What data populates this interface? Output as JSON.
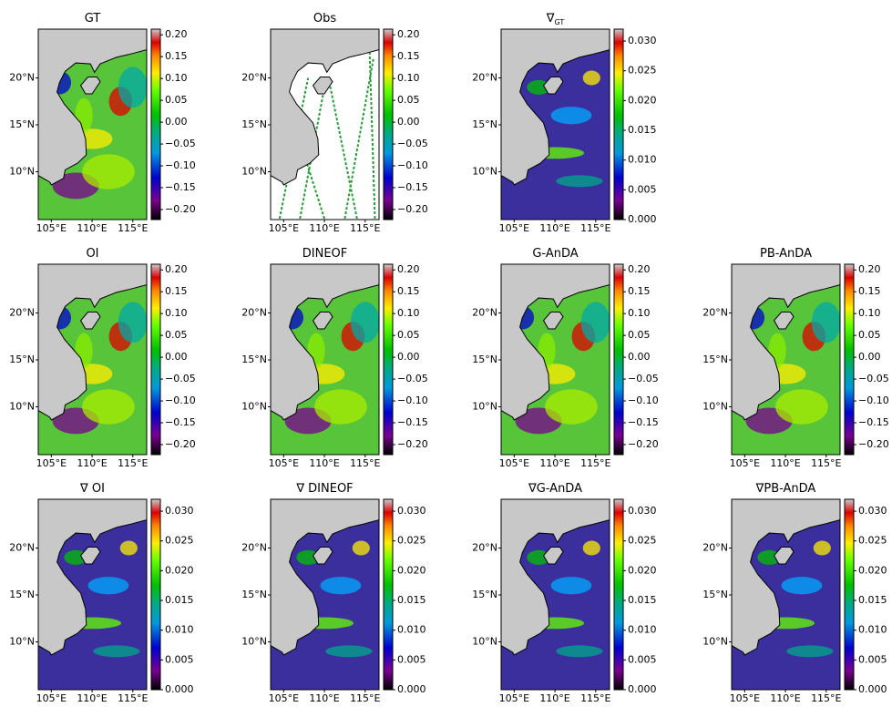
{
  "chart_data": [
    {
      "type": "map",
      "title": "GT",
      "color": "#58c43a",
      "xlim": [
        103.4,
        116.7
      ],
      "ylim": [
        4.9,
        25.2
      ],
      "xticks": [
        {
          "value": 105,
          "label": "105°E"
        },
        {
          "value": 110,
          "label": "110°E"
        },
        {
          "value": 115,
          "label": "115°E"
        }
      ],
      "yticks": [
        {
          "value": 10,
          "label": "10°N"
        },
        {
          "value": 15,
          "label": "15°N"
        },
        {
          "value": 20,
          "label": "20°N"
        }
      ],
      "clim": [
        -0.223,
        0.213
      ],
      "cticks": [
        {
          "value": 0.2,
          "label": "0.20"
        },
        {
          "value": 0.15,
          "label": "0.15"
        },
        {
          "value": 0.1,
          "label": "0.10"
        },
        {
          "value": 0.05,
          "label": "0.05"
        },
        {
          "value": 0,
          "label": "0.00"
        },
        {
          "value": -0.05,
          "label": "−0.05"
        },
        {
          "value": -0.1,
          "label": "−0.10"
        },
        {
          "value": -0.15,
          "label": "−0.15"
        },
        {
          "value": -0.2,
          "label": "−0.20"
        }
      ]
    },
    {
      "type": "map",
      "title": "Obs",
      "color": "#ffffff",
      "xlim": [
        103.4,
        116.7
      ],
      "ylim": [
        4.9,
        25.2
      ],
      "xticks": [
        {
          "value": 105,
          "label": "105°E"
        },
        {
          "value": 110,
          "label": "110°E"
        },
        {
          "value": 115,
          "label": "115°E"
        }
      ],
      "yticks": [
        {
          "value": 10,
          "label": "10°N"
        },
        {
          "value": 15,
          "label": "15°N"
        },
        {
          "value": 20,
          "label": "20°N"
        }
      ],
      "clim": [
        -0.223,
        0.213
      ],
      "cticks": [
        {
          "value": 0.2,
          "label": "0.20"
        },
        {
          "value": 0.15,
          "label": "0.15"
        },
        {
          "value": 0.1,
          "label": "0.10"
        },
        {
          "value": 0.05,
          "label": "0.05"
        },
        {
          "value": 0,
          "label": "0.00"
        },
        {
          "value": -0.05,
          "label": "−0.05"
        },
        {
          "value": -0.1,
          "label": "−0.10"
        },
        {
          "value": -0.15,
          "label": "−0.15"
        },
        {
          "value": -0.2,
          "label": "−0.20"
        }
      ]
    },
    {
      "type": "map",
      "title": "∇",
      "subscript": "GT",
      "color": "#3b2f9e",
      "xlim": [
        103.4,
        116.7
      ],
      "ylim": [
        4.9,
        25.2
      ],
      "xticks": [
        {
          "value": 105,
          "label": "105°E"
        },
        {
          "value": 110,
          "label": "110°E"
        },
        {
          "value": 115,
          "label": "115°E"
        }
      ],
      "yticks": [
        {
          "value": 10,
          "label": "10°N"
        },
        {
          "value": 15,
          "label": "15°N"
        },
        {
          "value": 20,
          "label": "20°N"
        }
      ],
      "clim": [
        0,
        0.032
      ],
      "cticks": [
        {
          "value": 0.03,
          "label": "0.030"
        },
        {
          "value": 0.025,
          "label": "0.025"
        },
        {
          "value": 0.02,
          "label": "0.020"
        },
        {
          "value": 0.015,
          "label": "0.015"
        },
        {
          "value": 0.01,
          "label": "0.010"
        },
        {
          "value": 0.005,
          "label": "0.005"
        },
        {
          "value": 0,
          "label": "0.000"
        }
      ]
    },
    {
      "type": "map",
      "title": "OI",
      "color": "#58c43a",
      "xlim": [
        103.4,
        116.7
      ],
      "ylim": [
        4.9,
        25.2
      ],
      "xticks": [
        {
          "value": 105,
          "label": "105°E"
        },
        {
          "value": 110,
          "label": "110°E"
        },
        {
          "value": 115,
          "label": "115°E"
        }
      ],
      "yticks": [
        {
          "value": 10,
          "label": "10°N"
        },
        {
          "value": 15,
          "label": "15°N"
        },
        {
          "value": 20,
          "label": "20°N"
        }
      ],
      "clim": [
        -0.223,
        0.213
      ],
      "cticks": [
        {
          "value": 0.2,
          "label": "0.20"
        },
        {
          "value": 0.15,
          "label": "0.15"
        },
        {
          "value": 0.1,
          "label": "0.10"
        },
        {
          "value": 0.05,
          "label": "0.05"
        },
        {
          "value": 0,
          "label": "0.00"
        },
        {
          "value": -0.05,
          "label": "−0.05"
        },
        {
          "value": -0.1,
          "label": "−0.10"
        },
        {
          "value": -0.15,
          "label": "−0.15"
        },
        {
          "value": -0.2,
          "label": "−0.20"
        }
      ]
    },
    {
      "type": "map",
      "title": "DINEOF",
      "color": "#58c43a",
      "xlim": [
        103.4,
        116.7
      ],
      "ylim": [
        4.9,
        25.2
      ],
      "xticks": [
        {
          "value": 105,
          "label": "105°E"
        },
        {
          "value": 110,
          "label": "110°E"
        },
        {
          "value": 115,
          "label": "115°E"
        }
      ],
      "yticks": [
        {
          "value": 10,
          "label": "10°N"
        },
        {
          "value": 15,
          "label": "15°N"
        },
        {
          "value": 20,
          "label": "20°N"
        }
      ],
      "clim": [
        -0.223,
        0.213
      ],
      "cticks": [
        {
          "value": 0.2,
          "label": "0.20"
        },
        {
          "value": 0.15,
          "label": "0.15"
        },
        {
          "value": 0.1,
          "label": "0.10"
        },
        {
          "value": 0.05,
          "label": "0.05"
        },
        {
          "value": 0,
          "label": "0.00"
        },
        {
          "value": -0.05,
          "label": "−0.05"
        },
        {
          "value": -0.1,
          "label": "−0.10"
        },
        {
          "value": -0.15,
          "label": "−0.15"
        },
        {
          "value": -0.2,
          "label": "−0.20"
        }
      ]
    },
    {
      "type": "map",
      "title": "G-AnDA",
      "color": "#58c43a",
      "xlim": [
        103.4,
        116.7
      ],
      "ylim": [
        4.9,
        25.2
      ],
      "xticks": [
        {
          "value": 105,
          "label": "105°E"
        },
        {
          "value": 110,
          "label": "110°E"
        },
        {
          "value": 115,
          "label": "115°E"
        }
      ],
      "yticks": [
        {
          "value": 10,
          "label": "10°N"
        },
        {
          "value": 15,
          "label": "15°N"
        },
        {
          "value": 20,
          "label": "20°N"
        }
      ],
      "clim": [
        -0.223,
        0.213
      ],
      "cticks": [
        {
          "value": 0.2,
          "label": "0.20"
        },
        {
          "value": 0.15,
          "label": "0.15"
        },
        {
          "value": 0.1,
          "label": "0.10"
        },
        {
          "value": 0.05,
          "label": "0.05"
        },
        {
          "value": 0,
          "label": "0.00"
        },
        {
          "value": -0.05,
          "label": "−0.05"
        },
        {
          "value": -0.1,
          "label": "−0.10"
        },
        {
          "value": -0.15,
          "label": "−0.15"
        },
        {
          "value": -0.2,
          "label": "−0.20"
        }
      ]
    },
    {
      "type": "map",
      "title": "PB-AnDA",
      "color": "#58c43a",
      "xlim": [
        103.4,
        116.7
      ],
      "ylim": [
        4.9,
        25.2
      ],
      "xticks": [
        {
          "value": 105,
          "label": "105°E"
        },
        {
          "value": 110,
          "label": "110°E"
        },
        {
          "value": 115,
          "label": "115°E"
        }
      ],
      "yticks": [
        {
          "value": 10,
          "label": "10°N"
        },
        {
          "value": 15,
          "label": "15°N"
        },
        {
          "value": 20,
          "label": "20°N"
        }
      ],
      "clim": [
        -0.223,
        0.213
      ],
      "cticks": [
        {
          "value": 0.2,
          "label": "0.20"
        },
        {
          "value": 0.15,
          "label": "0.15"
        },
        {
          "value": 0.1,
          "label": "0.10"
        },
        {
          "value": 0.05,
          "label": "0.05"
        },
        {
          "value": 0,
          "label": "0.00"
        },
        {
          "value": -0.05,
          "label": "−0.05"
        },
        {
          "value": -0.1,
          "label": "−0.10"
        },
        {
          "value": -0.15,
          "label": "−0.15"
        },
        {
          "value": -0.2,
          "label": "−0.20"
        }
      ]
    },
    {
      "type": "map",
      "title": "∇ OI",
      "color": "#3b2f9e",
      "xlim": [
        103.4,
        116.7
      ],
      "ylim": [
        4.9,
        25.2
      ],
      "xticks": [
        {
          "value": 105,
          "label": "105°E"
        },
        {
          "value": 110,
          "label": "110°E"
        },
        {
          "value": 115,
          "label": "115°E"
        }
      ],
      "yticks": [
        {
          "value": 10,
          "label": "10°N"
        },
        {
          "value": 15,
          "label": "15°N"
        },
        {
          "value": 20,
          "label": "20°N"
        }
      ],
      "clim": [
        0,
        0.032
      ],
      "cticks": [
        {
          "value": 0.03,
          "label": "0.030"
        },
        {
          "value": 0.025,
          "label": "0.025"
        },
        {
          "value": 0.02,
          "label": "0.020"
        },
        {
          "value": 0.015,
          "label": "0.015"
        },
        {
          "value": 0.01,
          "label": "0.010"
        },
        {
          "value": 0.005,
          "label": "0.005"
        },
        {
          "value": 0,
          "label": "0.000"
        }
      ]
    },
    {
      "type": "map",
      "title": "∇ DINEOF",
      "color": "#3b2f9e",
      "xlim": [
        103.4,
        116.7
      ],
      "ylim": [
        4.9,
        25.2
      ],
      "xticks": [
        {
          "value": 105,
          "label": "105°E"
        },
        {
          "value": 110,
          "label": "110°E"
        },
        {
          "value": 115,
          "label": "115°E"
        }
      ],
      "yticks": [
        {
          "value": 10,
          "label": "10°N"
        },
        {
          "value": 15,
          "label": "15°N"
        },
        {
          "value": 20,
          "label": "20°N"
        }
      ],
      "clim": [
        0,
        0.032
      ],
      "cticks": [
        {
          "value": 0.03,
          "label": "0.030"
        },
        {
          "value": 0.025,
          "label": "0.025"
        },
        {
          "value": 0.02,
          "label": "0.020"
        },
        {
          "value": 0.015,
          "label": "0.015"
        },
        {
          "value": 0.01,
          "label": "0.010"
        },
        {
          "value": 0.005,
          "label": "0.005"
        },
        {
          "value": 0,
          "label": "0.000"
        }
      ]
    },
    {
      "type": "map",
      "title": "∇G-AnDA",
      "color": "#3b2f9e",
      "xlim": [
        103.4,
        116.7
      ],
      "ylim": [
        4.9,
        25.2
      ],
      "xticks": [
        {
          "value": 105,
          "label": "105°E"
        },
        {
          "value": 110,
          "label": "110°E"
        },
        {
          "value": 115,
          "label": "115°E"
        }
      ],
      "yticks": [
        {
          "value": 10,
          "label": "10°N"
        },
        {
          "value": 15,
          "label": "15°N"
        },
        {
          "value": 20,
          "label": "20°N"
        }
      ],
      "clim": [
        0,
        0.032
      ],
      "cticks": [
        {
          "value": 0.03,
          "label": "0.030"
        },
        {
          "value": 0.025,
          "label": "0.025"
        },
        {
          "value": 0.02,
          "label": "0.020"
        },
        {
          "value": 0.015,
          "label": "0.015"
        },
        {
          "value": 0.01,
          "label": "0.010"
        },
        {
          "value": 0.005,
          "label": "0.005"
        },
        {
          "value": 0,
          "label": "0.000"
        }
      ]
    },
    {
      "type": "map",
      "title": "∇PB-AnDA",
      "color": "#3b2f9e",
      "xlim": [
        103.4,
        116.7
      ],
      "ylim": [
        4.9,
        25.2
      ],
      "xticks": [
        {
          "value": 105,
          "label": "105°E"
        },
        {
          "value": 110,
          "label": "110°E"
        },
        {
          "value": 115,
          "label": "115°E"
        }
      ],
      "yticks": [
        {
          "value": 10,
          "label": "10°N"
        },
        {
          "value": 15,
          "label": "15°N"
        },
        {
          "value": 20,
          "label": "20°N"
        }
      ],
      "clim": [
        0,
        0.032
      ],
      "cticks": [
        {
          "value": 0.03,
          "label": "0.030"
        },
        {
          "value": 0.025,
          "label": "0.025"
        },
        {
          "value": 0.02,
          "label": "0.020"
        },
        {
          "value": 0.015,
          "label": "0.015"
        },
        {
          "value": 0.01,
          "label": "0.010"
        },
        {
          "value": 0.005,
          "label": "0.005"
        },
        {
          "value": 0,
          "label": "0.000"
        }
      ]
    }
  ]
}
